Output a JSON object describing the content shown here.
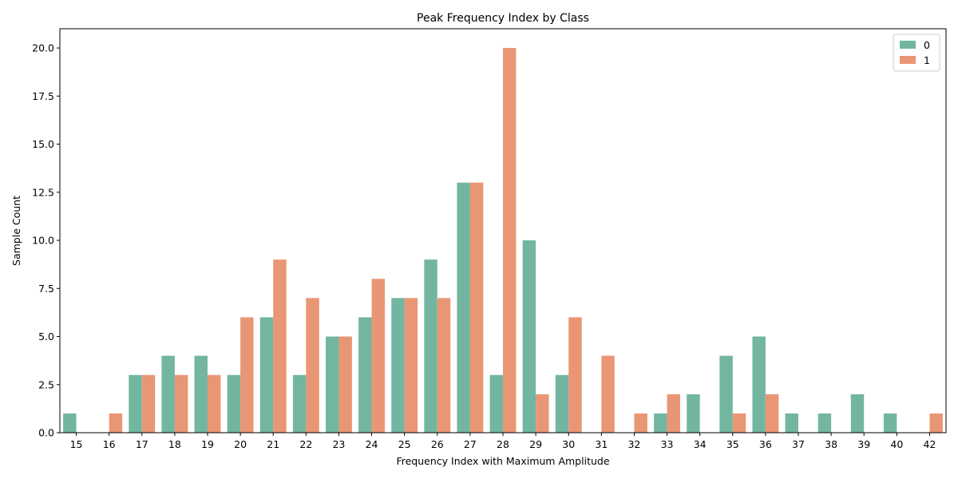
{
  "chart_data": {
    "type": "bar",
    "title": "Peak Frequency Index by Class",
    "xlabel": "Frequency Index with Maximum Amplitude",
    "ylabel": "Sample Count",
    "categories": [
      "15",
      "16",
      "17",
      "18",
      "19",
      "20",
      "21",
      "22",
      "23",
      "24",
      "25",
      "26",
      "27",
      "28",
      "29",
      "30",
      "31",
      "32",
      "33",
      "34",
      "35",
      "36",
      "37",
      "38",
      "39",
      "40",
      "42"
    ],
    "series": [
      {
        "name": "0",
        "color": "#72b6a1",
        "values": [
          1,
          0,
          3,
          4,
          4,
          3,
          6,
          3,
          5,
          6,
          7,
          9,
          13,
          3,
          10,
          3,
          0,
          0,
          1,
          2,
          4,
          5,
          1,
          1,
          2,
          1,
          0
        ]
      },
      {
        "name": "1",
        "color": "#e99675",
        "values": [
          0,
          1,
          3,
          3,
          3,
          6,
          9,
          7,
          5,
          8,
          7,
          7,
          13,
          20,
          2,
          6,
          4,
          1,
          2,
          0,
          1,
          2,
          0,
          0,
          0,
          0,
          1
        ]
      }
    ],
    "ylim": [
      0,
      21
    ],
    "yticks": [
      "0.0",
      "2.5",
      "5.0",
      "7.5",
      "10.0",
      "12.5",
      "15.0",
      "17.5",
      "20.0"
    ],
    "legend_position": "top-right",
    "grid": false
  }
}
